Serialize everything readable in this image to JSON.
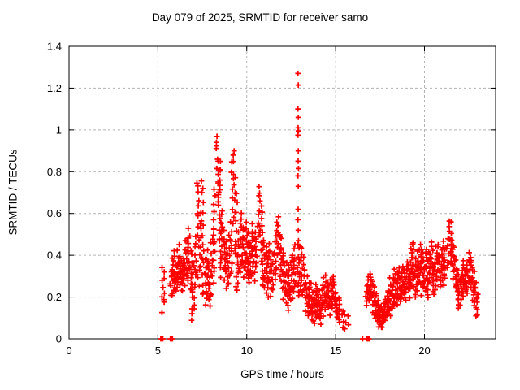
{
  "chart_data": {
    "type": "scatter",
    "title": "Day 079 of 2025, SRMTID for receiver samo",
    "xlabel": "GPS time / hours",
    "ylabel": "SRMTID / TECUs",
    "xlim": [
      0,
      24
    ],
    "ylim": [
      0,
      1.4
    ],
    "xticks": [
      0,
      5,
      10,
      15,
      20
    ],
    "xtick_labels": [
      "0",
      "5",
      "10",
      "15",
      "20"
    ],
    "yticks": [
      0,
      0.2,
      0.4,
      0.6,
      0.8,
      1,
      1.2,
      1.4
    ],
    "ytick_labels": [
      "0",
      "0.2",
      "0.4",
      "0.6",
      "0.8",
      "1",
      "1.2",
      "1.4"
    ],
    "grid": true,
    "legend": "none",
    "marker": {
      "glyph": "plus",
      "color": "#ff0000",
      "size": 7
    },
    "grid_color": "#b3b3b3",
    "border_color": "#000000",
    "series_name": "SRMTID",
    "columns_format": [
      "time_hours",
      "y_min_TECU",
      "y_max_TECU",
      "n_points"
    ],
    "columns": [
      [
        5.3,
        0.14,
        0.33,
        10
      ],
      [
        5.75,
        0.2,
        0.33,
        7
      ],
      [
        5.85,
        0.22,
        0.38,
        8
      ],
      [
        5.95,
        0.24,
        0.42,
        9
      ],
      [
        6.05,
        0.22,
        0.36,
        8
      ],
      [
        6.15,
        0.26,
        0.44,
        9
      ],
      [
        6.25,
        0.27,
        0.4,
        8
      ],
      [
        6.35,
        0.22,
        0.34,
        7
      ],
      [
        6.45,
        0.26,
        0.38,
        7
      ],
      [
        6.55,
        0.3,
        0.46,
        8
      ],
      [
        6.65,
        0.28,
        0.52,
        9
      ],
      [
        6.75,
        0.3,
        0.48,
        8
      ],
      [
        6.85,
        0.24,
        0.42,
        8
      ],
      [
        6.95,
        0.1,
        0.3,
        8
      ],
      [
        7.05,
        0.14,
        0.36,
        8
      ],
      [
        7.15,
        0.3,
        0.5,
        7
      ],
      [
        7.25,
        0.55,
        0.76,
        8
      ],
      [
        7.3,
        0.25,
        0.5,
        8
      ],
      [
        7.4,
        0.35,
        0.6,
        7
      ],
      [
        7.5,
        0.5,
        0.77,
        8
      ],
      [
        7.55,
        0.2,
        0.45,
        9
      ],
      [
        7.7,
        0.17,
        0.38,
        9
      ],
      [
        7.8,
        0.2,
        0.42,
        9
      ],
      [
        7.9,
        0.15,
        0.35,
        8
      ],
      [
        8.0,
        0.2,
        0.45,
        9
      ],
      [
        8.1,
        0.28,
        0.52,
        8
      ],
      [
        8.2,
        0.42,
        0.72,
        9
      ],
      [
        8.35,
        0.68,
        0.97,
        13
      ],
      [
        8.45,
        0.58,
        0.85,
        11
      ],
      [
        8.5,
        0.3,
        0.55,
        9
      ],
      [
        8.6,
        0.38,
        0.62,
        9
      ],
      [
        8.7,
        0.32,
        0.55,
        8
      ],
      [
        8.8,
        0.25,
        0.48,
        8
      ],
      [
        8.9,
        0.26,
        0.45,
        8
      ],
      [
        9.0,
        0.28,
        0.5,
        8
      ],
      [
        9.1,
        0.3,
        0.55,
        8
      ],
      [
        9.2,
        0.55,
        0.84,
        8
      ],
      [
        9.3,
        0.62,
        0.91,
        9
      ],
      [
        9.4,
        0.4,
        0.68,
        8
      ],
      [
        9.45,
        0.22,
        0.45,
        8
      ],
      [
        9.55,
        0.28,
        0.5,
        8
      ],
      [
        9.65,
        0.32,
        0.55,
        9
      ],
      [
        9.75,
        0.35,
        0.6,
        9
      ],
      [
        9.85,
        0.3,
        0.52,
        9
      ],
      [
        9.95,
        0.32,
        0.56,
        9
      ],
      [
        10.05,
        0.28,
        0.5,
        8
      ],
      [
        10.15,
        0.26,
        0.46,
        8
      ],
      [
        10.25,
        0.3,
        0.5,
        8
      ],
      [
        10.35,
        0.32,
        0.54,
        8
      ],
      [
        10.45,
        0.28,
        0.48,
        8
      ],
      [
        10.55,
        0.33,
        0.55,
        8
      ],
      [
        10.7,
        0.48,
        0.73,
        10
      ],
      [
        10.8,
        0.42,
        0.64,
        8
      ],
      [
        10.85,
        0.24,
        0.45,
        8
      ],
      [
        10.95,
        0.28,
        0.5,
        8
      ],
      [
        11.05,
        0.24,
        0.45,
        8
      ],
      [
        11.15,
        0.2,
        0.4,
        8
      ],
      [
        11.25,
        0.24,
        0.45,
        8
      ],
      [
        11.35,
        0.2,
        0.42,
        8
      ],
      [
        11.45,
        0.24,
        0.4,
        7
      ],
      [
        11.6,
        0.28,
        0.48,
        8
      ],
      [
        11.7,
        0.34,
        0.56,
        8
      ],
      [
        11.8,
        0.4,
        0.58,
        8
      ],
      [
        11.9,
        0.3,
        0.5,
        8
      ],
      [
        12.0,
        0.24,
        0.44,
        8
      ],
      [
        12.1,
        0.2,
        0.4,
        8
      ],
      [
        12.2,
        0.18,
        0.35,
        8
      ],
      [
        12.3,
        0.15,
        0.32,
        8
      ],
      [
        12.4,
        0.18,
        0.35,
        8
      ],
      [
        12.5,
        0.2,
        0.38,
        8
      ],
      [
        12.6,
        0.2,
        0.4,
        8
      ],
      [
        12.7,
        0.24,
        0.45,
        8
      ],
      [
        12.9,
        0.2,
        0.45,
        11
      ],
      [
        13.0,
        0.24,
        0.45,
        8
      ],
      [
        13.1,
        0.2,
        0.4,
        8
      ],
      [
        13.2,
        0.22,
        0.38,
        7
      ],
      [
        13.35,
        0.14,
        0.3,
        8
      ],
      [
        13.45,
        0.1,
        0.26,
        8
      ],
      [
        13.55,
        0.12,
        0.28,
        8
      ],
      [
        13.65,
        0.1,
        0.22,
        8
      ],
      [
        13.75,
        0.08,
        0.2,
        8
      ],
      [
        13.85,
        0.1,
        0.24,
        8
      ],
      [
        13.95,
        0.12,
        0.26,
        8
      ],
      [
        14.05,
        0.1,
        0.22,
        7
      ],
      [
        14.15,
        0.08,
        0.2,
        7
      ],
      [
        14.25,
        0.12,
        0.24,
        7
      ],
      [
        14.35,
        0.14,
        0.28,
        8
      ],
      [
        14.45,
        0.17,
        0.3,
        8
      ],
      [
        14.55,
        0.15,
        0.27,
        8
      ],
      [
        14.65,
        0.12,
        0.25,
        7
      ],
      [
        14.75,
        0.15,
        0.28,
        8
      ],
      [
        14.85,
        0.17,
        0.3,
        8
      ],
      [
        14.95,
        0.14,
        0.25,
        7
      ],
      [
        15.05,
        0.1,
        0.2,
        6
      ],
      [
        15.15,
        0.08,
        0.18,
        6
      ],
      [
        15.25,
        0.1,
        0.2,
        5
      ],
      [
        15.4,
        0.06,
        0.14,
        4
      ],
      [
        15.55,
        0.05,
        0.12,
        3
      ],
      [
        15.68,
        0.07,
        0.11,
        2
      ],
      [
        16.75,
        0.16,
        0.25,
        6
      ],
      [
        16.85,
        0.19,
        0.29,
        7
      ],
      [
        16.95,
        0.21,
        0.31,
        7
      ],
      [
        17.05,
        0.17,
        0.27,
        6
      ],
      [
        17.15,
        0.12,
        0.24,
        8
      ],
      [
        17.25,
        0.1,
        0.22,
        8
      ],
      [
        17.35,
        0.08,
        0.18,
        8
      ],
      [
        17.45,
        0.05,
        0.15,
        8
      ],
      [
        17.55,
        0.06,
        0.16,
        8
      ],
      [
        17.65,
        0.05,
        0.14,
        8
      ],
      [
        17.75,
        0.08,
        0.18,
        8
      ],
      [
        17.85,
        0.1,
        0.2,
        8
      ],
      [
        17.95,
        0.12,
        0.24,
        8
      ],
      [
        18.05,
        0.14,
        0.28,
        8
      ],
      [
        18.15,
        0.12,
        0.26,
        8
      ],
      [
        18.25,
        0.15,
        0.3,
        8
      ],
      [
        18.35,
        0.17,
        0.34,
        8
      ],
      [
        18.45,
        0.15,
        0.3,
        8
      ],
      [
        18.55,
        0.19,
        0.34,
        8
      ],
      [
        18.65,
        0.17,
        0.31,
        8
      ],
      [
        18.75,
        0.2,
        0.36,
        8
      ],
      [
        18.85,
        0.21,
        0.34,
        8
      ],
      [
        18.95,
        0.19,
        0.32,
        8
      ],
      [
        19.05,
        0.24,
        0.38,
        8
      ],
      [
        19.15,
        0.21,
        0.36,
        8
      ],
      [
        19.25,
        0.24,
        0.43,
        9
      ],
      [
        19.35,
        0.28,
        0.47,
        8
      ],
      [
        19.45,
        0.24,
        0.4,
        8
      ],
      [
        19.55,
        0.2,
        0.36,
        8
      ],
      [
        19.65,
        0.24,
        0.43,
        9
      ],
      [
        19.75,
        0.28,
        0.46,
        8
      ],
      [
        19.85,
        0.22,
        0.4,
        8
      ],
      [
        19.95,
        0.24,
        0.41,
        8
      ],
      [
        20.05,
        0.24,
        0.43,
        8
      ],
      [
        20.15,
        0.2,
        0.38,
        8
      ],
      [
        20.25,
        0.24,
        0.42,
        8
      ],
      [
        20.35,
        0.27,
        0.46,
        8
      ],
      [
        20.45,
        0.24,
        0.41,
        8
      ],
      [
        20.55,
        0.2,
        0.37,
        8
      ],
      [
        20.65,
        0.24,
        0.43,
        8
      ],
      [
        20.75,
        0.29,
        0.45,
        8
      ],
      [
        20.85,
        0.24,
        0.41,
        8
      ],
      [
        20.95,
        0.27,
        0.44,
        8
      ],
      [
        21.05,
        0.29,
        0.46,
        8
      ],
      [
        21.15,
        0.27,
        0.44,
        8
      ],
      [
        21.3,
        0.33,
        0.49,
        8
      ],
      [
        21.45,
        0.38,
        0.57,
        10
      ],
      [
        21.55,
        0.34,
        0.51,
        8
      ],
      [
        21.65,
        0.29,
        0.44,
        8
      ],
      [
        21.75,
        0.24,
        0.39,
        8
      ],
      [
        21.85,
        0.2,
        0.34,
        8
      ],
      [
        21.95,
        0.15,
        0.29,
        8
      ],
      [
        22.05,
        0.17,
        0.31,
        8
      ],
      [
        22.15,
        0.2,
        0.34,
        8
      ],
      [
        22.25,
        0.24,
        0.37,
        8
      ],
      [
        22.35,
        0.21,
        0.34,
        8
      ],
      [
        22.45,
        0.24,
        0.39,
        8
      ],
      [
        22.55,
        0.28,
        0.41,
        8
      ],
      [
        22.65,
        0.24,
        0.37,
        8
      ],
      [
        22.75,
        0.19,
        0.32,
        8
      ],
      [
        22.85,
        0.14,
        0.27,
        8
      ],
      [
        22.95,
        0.1,
        0.21,
        6
      ]
    ],
    "points": [
      [
        12.88,
        1.27
      ],
      [
        12.9,
        1.215
      ],
      [
        12.88,
        1.1
      ],
      [
        12.9,
        1.06
      ],
      [
        12.89,
        1.01
      ],
      [
        12.91,
        0.995
      ],
      [
        12.88,
        0.975
      ],
      [
        12.9,
        0.9
      ],
      [
        12.89,
        0.85
      ],
      [
        12.91,
        0.815
      ],
      [
        12.88,
        0.78
      ],
      [
        12.9,
        0.73
      ],
      [
        12.89,
        0.62
      ],
      [
        12.88,
        0.57
      ],
      [
        12.9,
        0.52
      ],
      [
        12.91,
        0.47
      ]
    ],
    "zero_points": [
      [
        5.16,
        0
      ],
      [
        5.2,
        0
      ],
      [
        5.24,
        0
      ],
      [
        5.28,
        0
      ],
      [
        5.7,
        0
      ],
      [
        5.74,
        0
      ],
      [
        5.78,
        0
      ],
      [
        5.82,
        0
      ],
      [
        16.52,
        0
      ],
      [
        16.72,
        0
      ],
      [
        16.76,
        0
      ],
      [
        16.8,
        0
      ],
      [
        16.84,
        0
      ],
      [
        16.88,
        0
      ]
    ]
  }
}
